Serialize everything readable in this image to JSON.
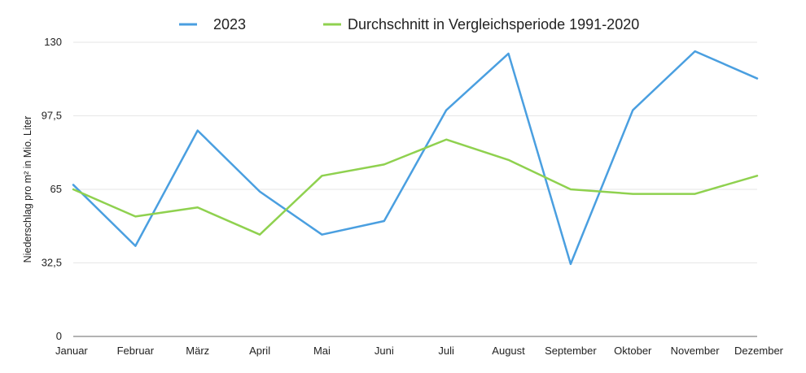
{
  "chart_data": {
    "type": "line",
    "categories": [
      "Januar",
      "Februar",
      "März",
      "April",
      "Mai",
      "Juni",
      "Juli",
      "August",
      "September",
      "Oktober",
      "November",
      "Dezember"
    ],
    "series": [
      {
        "name": "2023",
        "color": "#4a9fe0",
        "values": [
          67,
          40,
          91,
          64,
          45,
          51,
          100,
          125,
          32,
          100,
          126,
          114
        ]
      },
      {
        "name": "Durchschnitt in Vergleichsperiode 1991-2020",
        "color": "#8fd14f",
        "values": [
          65,
          53,
          57,
          45,
          71,
          76,
          87,
          78,
          65,
          63,
          63,
          71
        ]
      }
    ],
    "ylabel": "Niederschlag pro m² in Mio. Liter",
    "xlabel": "",
    "ylim": [
      0,
      130
    ],
    "yticks": [
      0,
      32.5,
      65,
      97.5,
      130
    ],
    "ytick_labels": [
      "0",
      "32,5",
      "65",
      "97,5",
      "130"
    ],
    "grid": true,
    "legend_position": "top-center"
  }
}
